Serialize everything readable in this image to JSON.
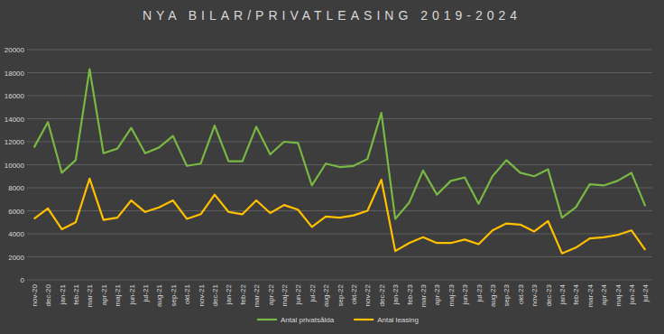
{
  "chart_data": {
    "type": "line",
    "title": "NYA BILAR/PRIVATLEASING 2019-2024",
    "categories": [
      "nov-20",
      "dec-20",
      "jan-21",
      "feb-21",
      "mar-21",
      "apr-21",
      "maj-21",
      "jun-21",
      "jul-21",
      "aug-21",
      "sep-21",
      "okt-21",
      "nov-21",
      "dec-21",
      "jan-22",
      "feb-22",
      "mar-22",
      "apr-22",
      "maj-22",
      "jun-22",
      "jul-22",
      "aug-22",
      "sep-22",
      "okt-22",
      "nov-22",
      "dec-22",
      "jan-23",
      "feb-23",
      "mar-23",
      "apr-23",
      "maj-23",
      "jun-23",
      "jul-23",
      "aug-23",
      "sep-23",
      "okt-23",
      "nov-23",
      "dec-23",
      "jan-24",
      "feb-24",
      "mar-24",
      "apr-24",
      "maj-24",
      "jun-24",
      "jul-24"
    ],
    "series": [
      {
        "name": "Antal privatsålda",
        "color": "#78b843",
        "values": [
          11500,
          13700,
          9300,
          10400,
          18300,
          11000,
          11400,
          13200,
          11000,
          11500,
          12500,
          9900,
          10100,
          13400,
          10300,
          10300,
          13300,
          10900,
          12000,
          11900,
          8200,
          10100,
          9800,
          9900,
          10500,
          14500,
          5300,
          6700,
          9500,
          7400,
          8600,
          8900,
          6600,
          9000,
          10400,
          9300,
          9000,
          9600,
          5400,
          6300,
          8300,
          8200,
          8600,
          9300,
          6400
        ]
      },
      {
        "name": "Antal leasing",
        "color": "#ffc000",
        "values": [
          5300,
          6200,
          4400,
          5000,
          8800,
          5200,
          5400,
          6900,
          5900,
          6300,
          6900,
          5300,
          5700,
          7400,
          5900,
          5700,
          6900,
          5800,
          6500,
          6100,
          4600,
          5500,
          5400,
          5600,
          6000,
          8700,
          2500,
          3200,
          3700,
          3200,
          3200,
          3500,
          3100,
          4300,
          4900,
          4800,
          4200,
          5100,
          2300,
          2800,
          3600,
          3700,
          3900,
          4300,
          2600
        ]
      }
    ],
    "ylim": [
      0,
      20000
    ],
    "yticks": [
      0,
      2000,
      4000,
      6000,
      8000,
      10000,
      12000,
      14000,
      16000,
      18000,
      20000
    ],
    "grid": true,
    "legend": "bottom"
  }
}
